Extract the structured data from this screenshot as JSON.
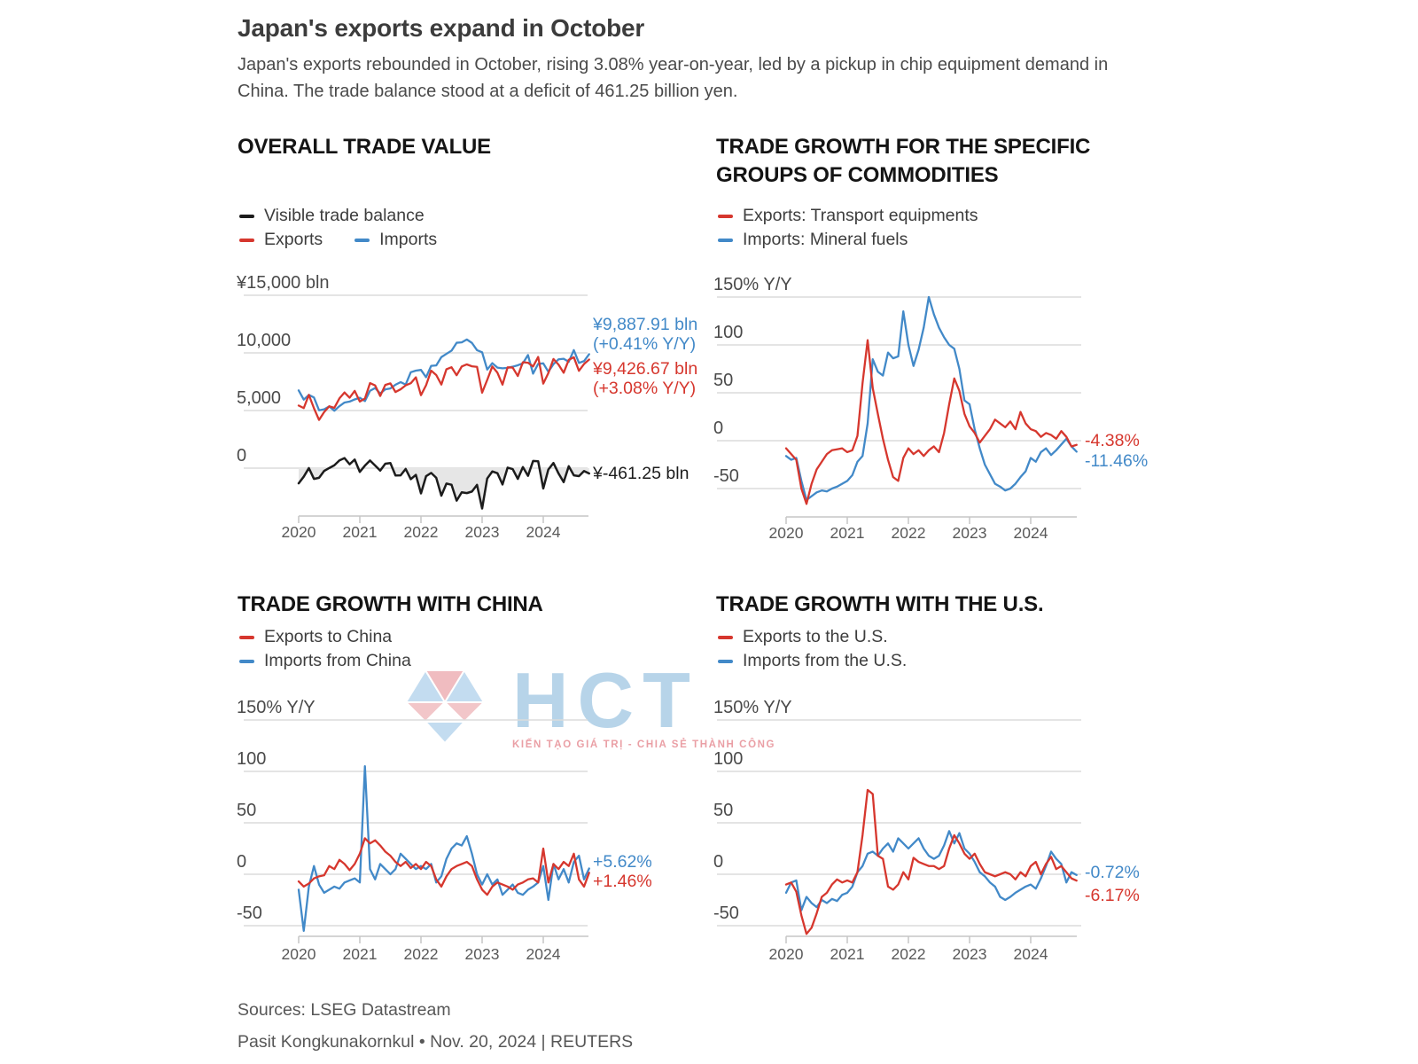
{
  "header": {
    "title": "Japan's exports expand in October",
    "subtitle": "Japan's exports rebounded in October, rising 3.08% year-on-year, led by a pickup in chip equipment demand in China. The trade balance stood at a deficit of 461.25 billion yen."
  },
  "footer": {
    "sources": "Sources: LSEG Datastream",
    "byline": "Pasit Kongkunakornkul • Nov. 20, 2024 | REUTERS"
  },
  "watermark": {
    "text": "HCT",
    "tagline": "KIẾN TẠO GIÁ TRỊ - CHIA SẺ THÀNH CÔNG",
    "letter_color": "#b7d4e9",
    "pink": "#f0bcc0",
    "light_blue": "#c3dcf0"
  },
  "colors": {
    "red": "#d6372e",
    "blue": "#4289c8",
    "black": "#1c1c1c",
    "grid": "#dcdcdc",
    "axis": "#c6c6c6",
    "tick": "#5a5a5a",
    "ylabel": "#4a4a4a",
    "area_fill": "#e6e6e6"
  },
  "chart_data": [
    {
      "type": "line",
      "title": "OVERALL TRADE VALUE",
      "x_range": [
        "2020-01",
        "2024-10"
      ],
      "x_ticks": [
        "2020",
        "2021",
        "2022",
        "2023",
        "2024"
      ],
      "ylim": [
        -3700,
        15000
      ],
      "ylabel": "¥ bln",
      "y_gridlines": [
        {
          "value": 15000,
          "label": "¥15,000 bln"
        },
        {
          "value": 10000,
          "label": "10,000"
        },
        {
          "value": 5000,
          "label": "5,000"
        },
        {
          "value": 0,
          "label": "0"
        }
      ],
      "legend_rows": [
        [
          {
            "label": "Visible trade balance",
            "color_key": "black"
          }
        ],
        [
          {
            "label": "Exports",
            "color_key": "red"
          },
          {
            "label": "Imports",
            "color_key": "blue"
          }
        ]
      ],
      "series": [
        {
          "name": "Imports",
          "color_key": "blue",
          "values": [
            6745,
            5947,
            6353,
            6132,
            5022,
            5102,
            5357,
            4984,
            5380,
            5694,
            5775,
            5964,
            6104,
            5821,
            6714,
            6953,
            6475,
            6837,
            6915,
            7241,
            7464,
            7251,
            8324,
            8463,
            8523,
            7890,
            8874,
            8915,
            9637,
            9920,
            10197,
            10879,
            10913,
            11164,
            10866,
            10236,
            10051,
            8553,
            9111,
            8722,
            8662,
            8702,
            8804,
            8925,
            9096,
            9815,
            8200,
            9050,
            9091,
            8362,
            9023,
            9443,
            9490,
            9230,
            10241,
            9132,
            9288,
            9887.91
          ]
        },
        {
          "name": "Exports",
          "color_key": "red",
          "values": [
            5431,
            5211,
            6358,
            5202,
            4184,
            4862,
            5369,
            5232,
            6055,
            6566,
            6113,
            6707,
            5780,
            6038,
            7378,
            7181,
            6261,
            7221,
            7356,
            6606,
            6841,
            7184,
            7367,
            7881,
            6332,
            7190,
            8461,
            8076,
            7252,
            8583,
            8753,
            8061,
            8818,
            9001,
            8837,
            8787,
            6551,
            7654,
            8823,
            8287,
            7247,
            8744,
            8725,
            7994,
            9193,
            9147,
            8821,
            9648,
            7332,
            8249,
            9470,
            8980,
            8277,
            9398,
            9619,
            8442,
            9038,
            9426.67
          ]
        },
        {
          "name": "Visible trade balance",
          "color_key": "black",
          "area": true,
          "values": [
            -1314,
            -736,
            5,
            -930,
            -838,
            -240,
            12,
            248,
            675,
            872,
            338,
            743,
            -324,
            217,
            664,
            228,
            -214,
            384,
            441,
            -635,
            -623,
            -67,
            -957,
            -582,
            -2191,
            -700,
            -413,
            -839,
            -2385,
            -1337,
            -1444,
            -2818,
            -2095,
            -2163,
            -2029,
            -1449,
            -3500,
            -899,
            -288,
            -435,
            -1415,
            42,
            -79,
            -931,
            97,
            -668,
            621,
            598,
            -1759,
            -113,
            447,
            -463,
            -1213,
            168,
            -622,
            -690,
            -250,
            -461.25
          ]
        }
      ],
      "end_labels": [
        {
          "lines": [
            "¥9,887.91 bln",
            "(+0.41% Y/Y)"
          ],
          "color_key": "blue"
        },
        {
          "lines": [
            "¥9,426.67 bln",
            "(+3.08% Y/Y)"
          ],
          "color_key": "red"
        },
        {
          "lines": [
            "¥-461.25 bln"
          ],
          "color_key": "black"
        }
      ]
    },
    {
      "type": "line",
      "title": "TRADE GROWTH FOR THE SPECIFIC GROUPS OF COMMODITIES",
      "x_range": [
        "2020-01",
        "2024-10"
      ],
      "x_ticks": [
        "2020",
        "2021",
        "2022",
        "2023",
        "2024"
      ],
      "ylim": [
        -75,
        150
      ],
      "ylabel": "% Y/Y",
      "y_gridlines": [
        {
          "value": 150,
          "label": "150% Y/Y"
        },
        {
          "value": 100,
          "label": "100"
        },
        {
          "value": 50,
          "label": "50"
        },
        {
          "value": 0,
          "label": "0"
        },
        {
          "value": -50,
          "label": "-50"
        }
      ],
      "legend_rows": [
        [
          {
            "label": "Exports: Transport equipments",
            "color_key": "red"
          }
        ],
        [
          {
            "label": "Imports: Mineral fuels",
            "color_key": "blue"
          }
        ]
      ],
      "series": [
        {
          "name": "Imports: Mineral fuels",
          "color_key": "blue",
          "values": [
            -16,
            -20,
            -18,
            -42,
            -62,
            -58,
            -54,
            -52,
            -53,
            -50,
            -48,
            -45,
            -42,
            -36,
            -22,
            -16,
            18,
            85,
            72,
            68,
            92,
            86,
            88,
            135,
            100,
            78,
            95,
            118,
            150,
            132,
            118,
            108,
            100,
            96,
            75,
            42,
            38,
            12,
            -8,
            -25,
            -35,
            -45,
            -48,
            -52,
            -50,
            -45,
            -38,
            -32,
            -18,
            -22,
            -12,
            -8,
            -15,
            -10,
            -4,
            2,
            -6,
            -11.46
          ]
        },
        {
          "name": "Exports: Transport equipments",
          "color_key": "red",
          "values": [
            -8,
            -14,
            -20,
            -50,
            -66,
            -45,
            -30,
            -22,
            -14,
            -10,
            -9,
            -8,
            -12,
            -10,
            5,
            60,
            105,
            55,
            28,
            2,
            -20,
            -38,
            -42,
            -18,
            -8,
            -14,
            -10,
            -16,
            -10,
            -6,
            -12,
            8,
            38,
            65,
            52,
            28,
            15,
            8,
            -2,
            5,
            12,
            22,
            18,
            14,
            20,
            12,
            30,
            18,
            12,
            10,
            4,
            8,
            6,
            2,
            10,
            4,
            -6,
            -4.38
          ]
        }
      ],
      "end_labels": [
        {
          "lines": [
            "-4.38%"
          ],
          "color_key": "red"
        },
        {
          "lines": [
            "-11.46%"
          ],
          "color_key": "blue"
        }
      ]
    },
    {
      "type": "line",
      "title": "TRADE GROWTH WITH CHINA",
      "x_range": [
        "2020-01",
        "2024-10"
      ],
      "x_ticks": [
        "2020",
        "2021",
        "2022",
        "2023",
        "2024"
      ],
      "ylim": [
        -70,
        150
      ],
      "ylabel": "% Y/Y",
      "y_gridlines": [
        {
          "value": 150,
          "label": "150% Y/Y"
        },
        {
          "value": 100,
          "label": "100"
        },
        {
          "value": 50,
          "label": "50"
        },
        {
          "value": 0,
          "label": "0"
        },
        {
          "value": -50,
          "label": "-50"
        }
      ],
      "legend_rows": [
        [
          {
            "label": "Exports to China",
            "color_key": "red"
          }
        ],
        [
          {
            "label": "Imports from China",
            "color_key": "blue"
          }
        ]
      ],
      "series": [
        {
          "name": "Imports from China",
          "color_key": "blue",
          "values": [
            -15,
            -55,
            -12,
            8,
            -10,
            -18,
            -15,
            -12,
            -14,
            -8,
            -6,
            -4,
            -8,
            105,
            5,
            -5,
            10,
            5,
            0,
            5,
            20,
            15,
            10,
            5,
            8,
            5,
            10,
            -8,
            -2,
            15,
            25,
            30,
            28,
            37,
            20,
            0,
            -10,
            0,
            -10,
            -5,
            -20,
            -15,
            -10,
            -18,
            -20,
            -15,
            -12,
            -8,
            8,
            -25,
            10,
            -5,
            5,
            -8,
            12,
            18,
            -5,
            5.62
          ]
        },
        {
          "name": "Exports to China",
          "color_key": "red",
          "values": [
            -7,
            -12,
            -9,
            -4,
            -2,
            -1,
            8,
            5,
            14,
            10,
            4,
            10,
            20,
            35,
            30,
            33,
            28,
            22,
            18,
            12,
            8,
            12,
            6,
            10,
            5,
            12,
            8,
            -5,
            -12,
            -2,
            5,
            8,
            10,
            12,
            8,
            -5,
            -15,
            -20,
            -12,
            -8,
            -10,
            -12,
            -15,
            -10,
            -8,
            -5,
            -4,
            -8,
            25,
            -8,
            10,
            5,
            12,
            8,
            20,
            -5,
            -12,
            1.46
          ]
        }
      ],
      "end_labels": [
        {
          "lines": [
            "+5.62%"
          ],
          "color_key": "blue"
        },
        {
          "lines": [
            "+1.46%"
          ],
          "color_key": "red"
        }
      ]
    },
    {
      "type": "line",
      "title": "TRADE GROWTH WITH THE U.S.",
      "x_range": [
        "2020-01",
        "2024-10"
      ],
      "x_ticks": [
        "2020",
        "2021",
        "2022",
        "2023",
        "2024"
      ],
      "ylim": [
        -70,
        150
      ],
      "ylabel": "% Y/Y",
      "y_gridlines": [
        {
          "value": 150,
          "label": "150% Y/Y"
        },
        {
          "value": 100,
          "label": "100"
        },
        {
          "value": 50,
          "label": "50"
        },
        {
          "value": 0,
          "label": "0"
        },
        {
          "value": -50,
          "label": "-50"
        }
      ],
      "legend_rows": [
        [
          {
            "label": "Exports to the U.S.",
            "color_key": "red"
          }
        ],
        [
          {
            "label": "Imports from the U.S.",
            "color_key": "blue"
          }
        ]
      ],
      "series": [
        {
          "name": "Imports from the U.S.",
          "color_key": "blue",
          "values": [
            -18,
            -8,
            -6,
            -35,
            -22,
            -28,
            -32,
            -25,
            -28,
            -24,
            -26,
            -20,
            -18,
            -12,
            2,
            8,
            20,
            22,
            18,
            25,
            30,
            22,
            35,
            30,
            25,
            30,
            35,
            25,
            18,
            15,
            18,
            28,
            42,
            30,
            40,
            25,
            20,
            12,
            2,
            -2,
            -8,
            -12,
            -22,
            -25,
            -22,
            -18,
            -15,
            -12,
            -10,
            -14,
            -4,
            8,
            22,
            15,
            10,
            -8,
            2,
            -0.72
          ]
        },
        {
          "name": "Exports to the U.S.",
          "color_key": "red",
          "values": [
            -10,
            -8,
            -17,
            -40,
            -58,
            -52,
            -38,
            -22,
            -18,
            -10,
            -5,
            -8,
            -6,
            -8,
            2,
            38,
            82,
            78,
            18,
            15,
            -12,
            -15,
            -10,
            2,
            -5,
            16,
            12,
            10,
            8,
            8,
            5,
            8,
            25,
            38,
            30,
            20,
            15,
            20,
            10,
            2,
            0,
            -2,
            0,
            2,
            0,
            -5,
            2,
            -2,
            8,
            12,
            0,
            10,
            17,
            5,
            8,
            2,
            -4,
            -6.17
          ]
        }
      ],
      "end_labels": [
        {
          "lines": [
            "-0.72%"
          ],
          "color_key": "blue"
        },
        {
          "lines": [
            "-6.17%"
          ],
          "color_key": "red"
        }
      ]
    }
  ]
}
